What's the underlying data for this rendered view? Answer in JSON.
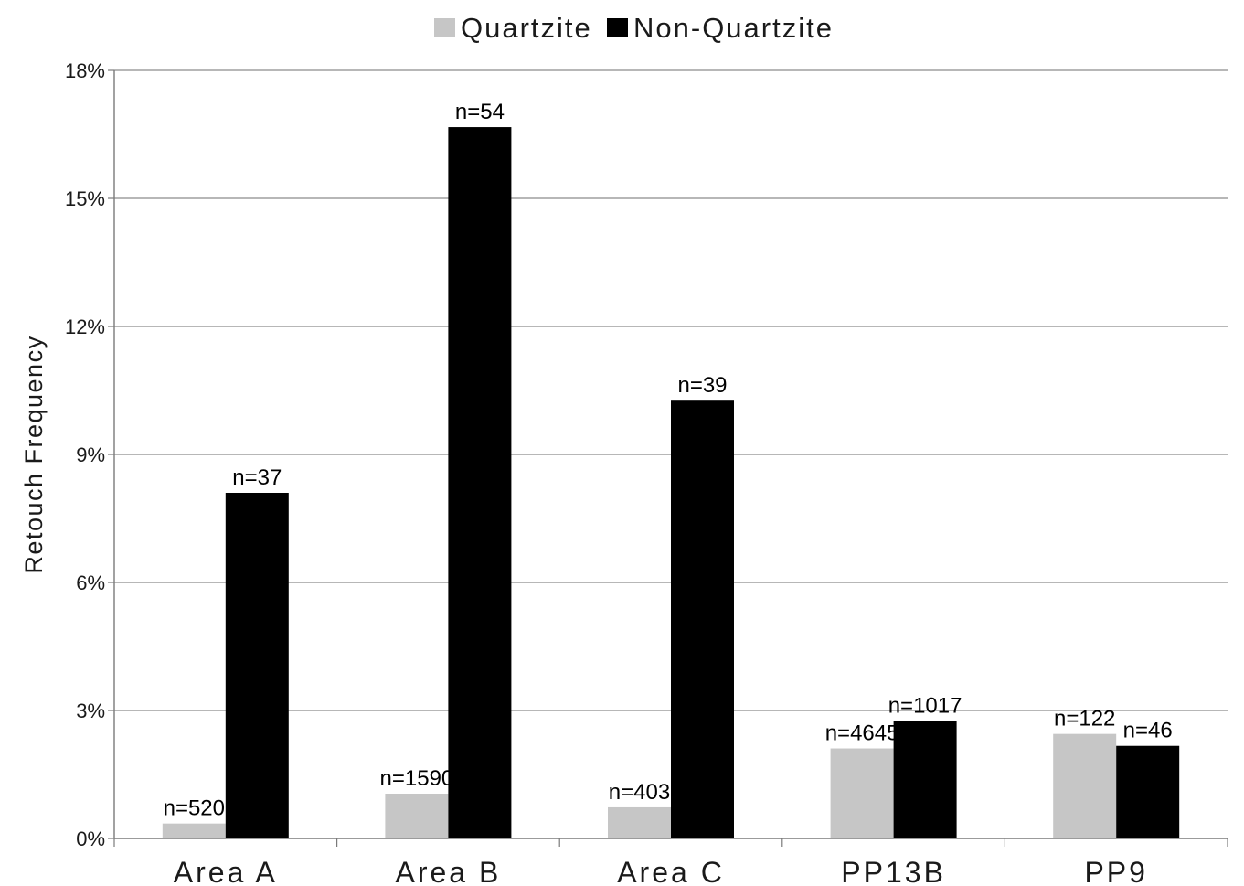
{
  "chart_data": {
    "type": "bar",
    "title": "",
    "xlabel": "",
    "ylabel": "Retouch Frequency",
    "ylim": [
      0,
      0.18
    ],
    "yticks": [
      {
        "value": 0,
        "label": "0%"
      },
      {
        "value": 0.03,
        "label": "3%"
      },
      {
        "value": 0.06,
        "label": "6%"
      },
      {
        "value": 0.09,
        "label": "9%"
      },
      {
        "value": 0.12,
        "label": "12%"
      },
      {
        "value": 0.15,
        "label": "15%"
      },
      {
        "value": 0.18,
        "label": "18%"
      }
    ],
    "grid": true,
    "legend_position": "top-center",
    "categories": [
      "Area A",
      "Area B",
      "Area C",
      "PP13B",
      "PP9"
    ],
    "series": [
      {
        "name": "Quartzite",
        "color": "#c6c6c6",
        "values": [
          0.0035,
          0.0105,
          0.0073,
          0.0211,
          0.0245
        ],
        "labels": [
          "n=520",
          "n=1590",
          "n=403",
          "n=4645",
          "n=122"
        ]
      },
      {
        "name": "Non-Quartzite",
        "color": "#000000",
        "values": [
          0.081,
          0.1667,
          0.1026,
          0.0275,
          0.0217
        ],
        "labels": [
          "n=37",
          "n=54",
          "n=39",
          "n=1017",
          "n=46"
        ]
      }
    ]
  }
}
